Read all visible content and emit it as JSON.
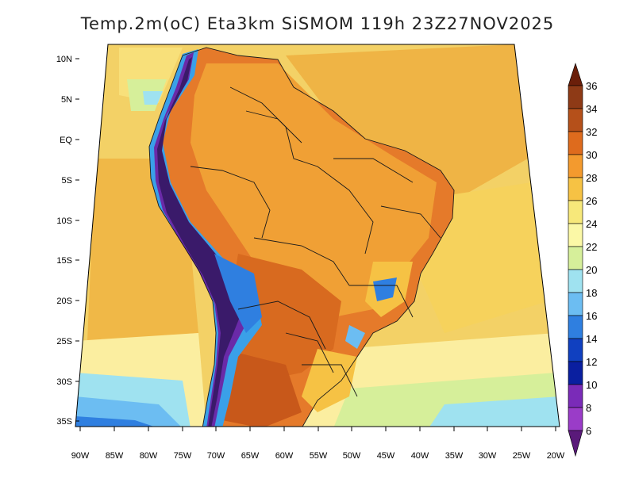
{
  "title": "Temp.2m(oC) Eta3km SiSMOM 119h 23Z27NOV2025",
  "lat_labels": [
    "10N",
    "5N",
    "EQ",
    "5S",
    "10S",
    "15S",
    "20S",
    "25S",
    "30S",
    "35S"
  ],
  "lon_labels": [
    "90W",
    "85W",
    "80W",
    "75W",
    "70W",
    "65W",
    "60W",
    "55W",
    "50W",
    "45W",
    "40W",
    "35W",
    "30W",
    "25W",
    "20W"
  ],
  "colorbar": {
    "labels": [
      "36",
      "34",
      "32",
      "30",
      "28",
      "26",
      "24",
      "22",
      "20",
      "18",
      "16",
      "14",
      "12",
      "10",
      "8",
      "6"
    ],
    "colors": [
      "#6b1f0a",
      "#8e3a16",
      "#b5501a",
      "#de6b1d",
      "#f39a2e",
      "#f6c244",
      "#f7e87a",
      "#fbf8a6",
      "#d6ef9a",
      "#9fe2f0",
      "#6cbdf2",
      "#2f7fe0",
      "#1040c0",
      "#0a1fa0",
      "#7a2bb8",
      "#9a3cc8",
      "#5a1a7a"
    ]
  },
  "map_colors": {
    "ocean_north": "#f3d166",
    "ocean_mid": "#f8e07a",
    "ocean_south": "#fbeea0",
    "cold_south": "#9fe2f0",
    "very_cold": "#2f7fe0",
    "land_hot": "#e57a2a",
    "land_warm": "#f0a035",
    "interior": "#d86a1f",
    "andes": "#6a2aa8",
    "andes_edge": "#3aa0e8",
    "border": "#1a1a1a"
  }
}
